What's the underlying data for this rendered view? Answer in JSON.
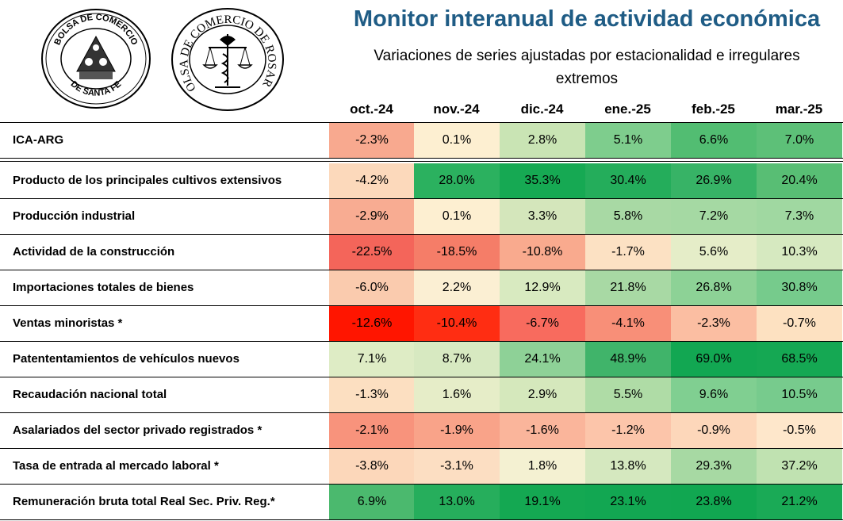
{
  "header": {
    "title": "Monitor interanual de actividad económica",
    "subtitle": "Variaciones de series ajustadas por estacionalidad e irregulares extremos"
  },
  "logos": {
    "bolsa_santa_fe": {
      "text_top": "BOLSA DE COMERCIO",
      "text_bottom": "DE SANTA FE"
    },
    "bolsa_rosario": {
      "text_ring": "BOLSA DE COMERCIO DE ROSARIO"
    }
  },
  "chart_data": {
    "type": "table",
    "columns": [
      "oct.-24",
      "nov.-24",
      "dic.-24",
      "ene.-25",
      "feb.-25",
      "mar.-25"
    ],
    "rows": [
      {
        "label": "ICA-ARG",
        "values": [
          "-2.3%",
          "0.1%",
          "2.8%",
          "5.1%",
          "6.6%",
          "7.0%"
        ],
        "colors": [
          "#F8A98F",
          "#FDEFD1",
          "#C9E4B4",
          "#7ECD8D",
          "#52BD72",
          "#5DC078"
        ]
      },
      {
        "label": "Producto de los principales cultivos extensivos",
        "values": [
          "-4.2%",
          "28.0%",
          "35.3%",
          "30.4%",
          "26.9%",
          "20.4%"
        ],
        "colors": [
          "#FCD9BB",
          "#2BB15F",
          "#16A953",
          "#24AD5B",
          "#37B366",
          "#58BE74"
        ]
      },
      {
        "label": "Producción industrial",
        "values": [
          "-2.9%",
          "0.1%",
          "3.3%",
          "5.8%",
          "7.2%",
          "7.3%"
        ],
        "colors": [
          "#F8AC92",
          "#FDEFD1",
          "#D4E6BB",
          "#A8D9A4",
          "#A5D9A3",
          "#A0D8A1"
        ]
      },
      {
        "label": "Actividad de la construcción",
        "values": [
          "-22.5%",
          "-18.5%",
          "-10.8%",
          "-1.7%",
          "5.6%",
          "10.3%"
        ],
        "colors": [
          "#F4655A",
          "#F57D68",
          "#F9AA8E",
          "#FCE1C3",
          "#E5EDC8",
          "#D6E9C0"
        ]
      },
      {
        "label": "Importaciones totales de bienes",
        "values": [
          "-6.0%",
          "2.2%",
          "12.9%",
          "21.8%",
          "26.8%",
          "30.8%"
        ],
        "colors": [
          "#FACBAE",
          "#FBEFD3",
          "#D8EAC0",
          "#A8D9A4",
          "#8DD296",
          "#76CB8C"
        ]
      },
      {
        "label": "Ventas minoristas *",
        "values": [
          "-12.6%",
          "-10.4%",
          "-6.7%",
          "-4.1%",
          "-2.3%",
          "-0.7%"
        ],
        "colors": [
          "#FF1500",
          "#FF2D12",
          "#F86B5E",
          "#F88F78",
          "#FBBEA2",
          "#FDE1C1"
        ]
      },
      {
        "label": "Patententamientos de vehículos nuevos",
        "values": [
          "7.1%",
          "8.7%",
          "24.1%",
          "48.9%",
          "69.0%",
          "68.5%"
        ],
        "colors": [
          "#DEECC5",
          "#D7E9C1",
          "#8ED197",
          "#40B46A",
          "#12A752",
          "#15A853"
        ]
      },
      {
        "label": "Recaudación nacional total",
        "values": [
          "-1.3%",
          "1.6%",
          "2.9%",
          "5.5%",
          "9.6%",
          "10.5%"
        ],
        "colors": [
          "#FCDFC1",
          "#E6EDC8",
          "#D5E8BC",
          "#AFDCA6",
          "#80CF91",
          "#77CB8D"
        ]
      },
      {
        "label": "Asalariados del sector privado registrados *",
        "values": [
          "-2.1%",
          "-1.9%",
          "-1.6%",
          "-1.2%",
          "-0.9%",
          "-0.5%"
        ],
        "colors": [
          "#F8937C",
          "#F9A389",
          "#FAB59B",
          "#FCC5AA",
          "#FDD7BA",
          "#FEE7CB"
        ]
      },
      {
        "label": "Tasa de entrada al mercado laboral *",
        "values": [
          "-3.8%",
          "-3.1%",
          "1.8%",
          "13.8%",
          "29.3%",
          "37.2%"
        ],
        "colors": [
          "#FCD7BA",
          "#FCDEC2",
          "#F4F1D2",
          "#D5E8BF",
          "#A7D9A3",
          "#C0E2B1"
        ]
      },
      {
        "label": "Remuneración bruta total Real Sec. Priv. Reg.*",
        "values": [
          "6.9%",
          "13.0%",
          "19.1%",
          "23.1%",
          "23.8%",
          "21.2%"
        ],
        "colors": [
          "#4BB96E",
          "#26AE5C",
          "#14A852",
          "#12A752",
          "#11A751",
          "#1AAA56"
        ]
      }
    ]
  }
}
